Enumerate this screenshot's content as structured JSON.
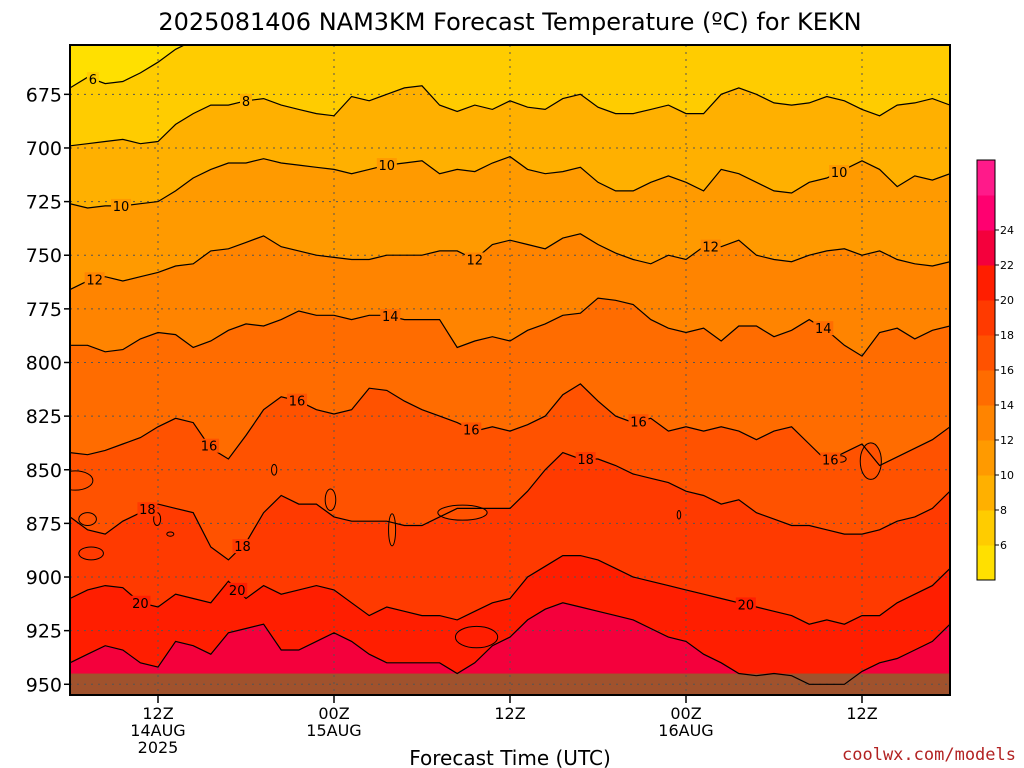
{
  "chart_data": {
    "type": "heatmap",
    "title": "2025081406 NAM3KM Forecast Temperature (ºC) for KEKN",
    "xlabel": "Forecast Time (UTC)",
    "ylabel": "",
    "credit": "coolwx.com/models",
    "y_axis": {
      "unit": "hPa",
      "inverted": true,
      "range": [
        652,
        955
      ],
      "ticks": [
        675,
        700,
        725,
        750,
        775,
        800,
        825,
        850,
        875,
        900,
        925,
        950
      ]
    },
    "x_axis": {
      "range_hours": [
        -5,
        45
      ],
      "ticks": [
        {
          "hour": 0,
          "lines": [
            "12Z",
            "14AUG",
            "2025"
          ]
        },
        {
          "hour": 10,
          "lines": [
            "00Z",
            "15AUG"
          ]
        },
        {
          "hour": 20,
          "lines": [
            "12Z"
          ]
        },
        {
          "hour": 30,
          "lines": [
            "00Z",
            "16AUG"
          ]
        },
        {
          "hour": 40,
          "lines": [
            "12Z"
          ]
        }
      ]
    },
    "grid": true,
    "colorbar": {
      "position": "right",
      "labels": [
        6,
        8,
        10,
        12,
        14,
        16,
        18,
        20,
        22,
        24
      ],
      "colors": [
        "#ffe000",
        "#ffcc00",
        "#ffb000",
        "#ff9a00",
        "#ff8400",
        "#ff6c00",
        "#ff5200",
        "#ff3a00",
        "#ff1e00",
        "#f4003c",
        "#ff0070",
        "#ff1a8a"
      ]
    },
    "contours": [
      {
        "level": 6,
        "label_hours": [
          -3.7
        ],
        "p": [
          672,
          667,
          670,
          669,
          665,
          660,
          654,
          650,
          650,
          650,
          650,
          650,
          650,
          650,
          650,
          650,
          650,
          650,
          650,
          650,
          650,
          650,
          650,
          650,
          650,
          650,
          650,
          650,
          650,
          650,
          650,
          650,
          650,
          650,
          650,
          650,
          650,
          650,
          650,
          650,
          650,
          652,
          648,
          645,
          650,
          650,
          650,
          650,
          650,
          650,
          650
        ]
      },
      {
        "level": 8,
        "label_hours": [
          -7.7,
          5
        ],
        "p": [
          699,
          698,
          697,
          696,
          698,
          697,
          689,
          684,
          680,
          680,
          678,
          677,
          680,
          682,
          684,
          685,
          676,
          678,
          675,
          672,
          671,
          680,
          683,
          680,
          682,
          678,
          681,
          682,
          677,
          675,
          681,
          684,
          684,
          682,
          680,
          684,
          684,
          675,
          672,
          675,
          679,
          680,
          679,
          676,
          678,
          682,
          685,
          680,
          679,
          677,
          680
        ]
      },
      {
        "level": 10,
        "label_hours": [
          -2.1,
          13,
          38.7
        ],
        "p": [
          726,
          728,
          727,
          727,
          726,
          725,
          720,
          714,
          710,
          707,
          707,
          705,
          707,
          708,
          709,
          710,
          712,
          710,
          708,
          707,
          706,
          712,
          710,
          711,
          707,
          704,
          710,
          712,
          711,
          709,
          716,
          720,
          720,
          716,
          713,
          716,
          720,
          710,
          712,
          716,
          720,
          721,
          716,
          714,
          710,
          706,
          710,
          718,
          713,
          715,
          712
        ]
      },
      {
        "level": 12,
        "label_hours": [
          -3.6,
          18,
          31.4
        ],
        "p": [
          766,
          762,
          760,
          762,
          760,
          758,
          755,
          754,
          748,
          747,
          744,
          741,
          746,
          748,
          750,
          751,
          752,
          752,
          750,
          750,
          750,
          748,
          748,
          752,
          745,
          743,
          745,
          747,
          742,
          740,
          745,
          749,
          752,
          754,
          750,
          752,
          746,
          746,
          743,
          750,
          752,
          753,
          750,
          748,
          747,
          750,
          748,
          752,
          754,
          755,
          753
        ]
      },
      {
        "level": 14,
        "label_hours": [
          13.2,
          37.8
        ],
        "p": [
          792,
          792,
          795,
          794,
          789,
          786,
          787,
          793,
          790,
          785,
          782,
          783,
          780,
          776,
          778,
          778,
          780,
          778,
          778,
          780,
          780,
          780,
          793,
          790,
          788,
          790,
          785,
          782,
          778,
          777,
          770,
          771,
          773,
          780,
          784,
          786,
          784,
          790,
          783,
          783,
          788,
          785,
          780,
          785,
          792,
          797,
          786,
          784,
          789,
          785,
          783
        ]
      },
      {
        "level": 16,
        "label_hours": [
          2.9,
          7.9,
          17.8,
          27.3,
          38.2
        ],
        "p": [
          842,
          843,
          841,
          838,
          835,
          830,
          826,
          828,
          840,
          845,
          834,
          822,
          816,
          818,
          822,
          824,
          822,
          812,
          813,
          818,
          822,
          825,
          828,
          832,
          830,
          832,
          829,
          825,
          815,
          810,
          818,
          825,
          828,
          826,
          832,
          830,
          832,
          830,
          832,
          836,
          832,
          830,
          838,
          846,
          842,
          838,
          848,
          844,
          840,
          836,
          830
        ]
      },
      {
        "level": 18,
        "label_hours": [
          -0.6,
          4.8,
          24.3
        ],
        "p": [
          872,
          878,
          880,
          874,
          870,
          866,
          868,
          870,
          886,
          892,
          884,
          870,
          862,
          866,
          866,
          872,
          874,
          874,
          874,
          876,
          876,
          872,
          868,
          868,
          868,
          868,
          860,
          850,
          842,
          845,
          845,
          848,
          852,
          854,
          856,
          860,
          862,
          866,
          864,
          870,
          873,
          876,
          876,
          878,
          880,
          880,
          878,
          874,
          872,
          868,
          860
        ]
      },
      {
        "level": 20,
        "label_hours": [
          -1,
          4.5,
          33.4
        ],
        "p": [
          910,
          906,
          904,
          905,
          912,
          914,
          908,
          910,
          912,
          902,
          910,
          904,
          908,
          906,
          904,
          906,
          912,
          918,
          914,
          916,
          918,
          918,
          920,
          916,
          912,
          910,
          900,
          895,
          890,
          890,
          892,
          896,
          900,
          902,
          904,
          906,
          908,
          910,
          912,
          914,
          916,
          918,
          922,
          920,
          922,
          918,
          918,
          912,
          908,
          904,
          896
        ]
      },
      {
        "level": 22,
        "label_hours": [],
        "p": [
          940,
          936,
          932,
          934,
          940,
          942,
          930,
          932,
          936,
          926,
          924,
          922,
          934,
          934,
          930,
          926,
          930,
          936,
          940,
          940,
          940,
          940,
          945,
          940,
          932,
          928,
          920,
          915,
          912,
          914,
          916,
          918,
          920,
          924,
          928,
          930,
          936,
          940,
          945,
          946,
          945,
          946,
          950,
          950,
          950,
          944,
          940,
          938,
          934,
          930,
          922
        ]
      }
    ],
    "blobs": [
      {
        "level": 16,
        "center": [
          -4.7,
          855
        ],
        "size": [
          2.0,
          9
        ]
      },
      {
        "level": 16,
        "center": [
          -4,
          873
        ],
        "size": [
          1.0,
          6
        ]
      },
      {
        "level": 18,
        "center": [
          -3.8,
          889
        ],
        "size": [
          1.4,
          6
        ]
      },
      {
        "level": 16,
        "center": [
          6.6,
          850
        ],
        "size": [
          0.3,
          5
        ]
      },
      {
        "level": 16,
        "center": [
          9.8,
          864
        ],
        "size": [
          0.6,
          10
        ]
      },
      {
        "level": 16,
        "center": [
          13.3,
          878
        ],
        "size": [
          0.4,
          15
        ]
      },
      {
        "level": 16,
        "center": [
          17.3,
          870
        ],
        "size": [
          2.8,
          7
        ]
      },
      {
        "level": 18,
        "center": [
          -0.05,
          873
        ],
        "size": [
          0.4,
          6
        ]
      },
      {
        "level": 18,
        "center": [
          0.7,
          880
        ],
        "size": [
          0.4,
          2
        ]
      },
      {
        "level": 20,
        "center": [
          18.1,
          928
        ],
        "size": [
          2.4,
          10
        ]
      },
      {
        "level": 16,
        "center": [
          38.8,
          845
        ],
        "size": [
          0.6,
          3
        ]
      },
      {
        "level": 18,
        "center": [
          29.6,
          871
        ],
        "size": [
          0.2,
          4
        ]
      },
      {
        "level": 16,
        "center": [
          40.5,
          846
        ],
        "size": [
          1.2,
          17
        ]
      }
    ],
    "ground": {
      "start_hpa": 945,
      "color": "#a0522d"
    }
  }
}
